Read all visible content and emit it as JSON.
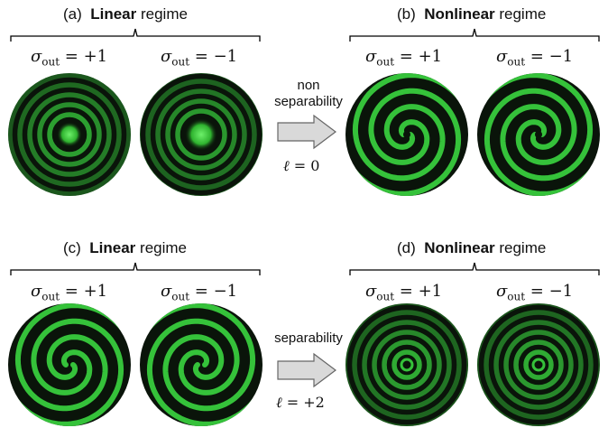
{
  "panels": {
    "a": {
      "tag": "(a)",
      "bold": "Linear",
      "rest": " regime"
    },
    "b": {
      "tag": "(b)",
      "bold": "Nonlinear",
      "rest": " regime"
    },
    "c": {
      "tag": "(c)",
      "bold": "Linear",
      "rest": " regime"
    },
    "d": {
      "tag": "(d)",
      "bold": "Nonlinear",
      "rest": " regime"
    }
  },
  "sigma": {
    "symbol": "σ",
    "sub": "out",
    "plus": " = +1",
    "minus": " = −1"
  },
  "arrows": {
    "top": {
      "line1": "non",
      "line2": "separability",
      "ell": "ℓ",
      "ell_val": " = 0"
    },
    "bottom": {
      "line1": "separability",
      "ell": "ℓ",
      "ell_val": " = +2"
    }
  },
  "colors": {
    "bg_dark": "#0a140a",
    "ring": "#35c23a",
    "arrow_fill": "#d9d9d9",
    "arrow_stroke": "#666666"
  }
}
